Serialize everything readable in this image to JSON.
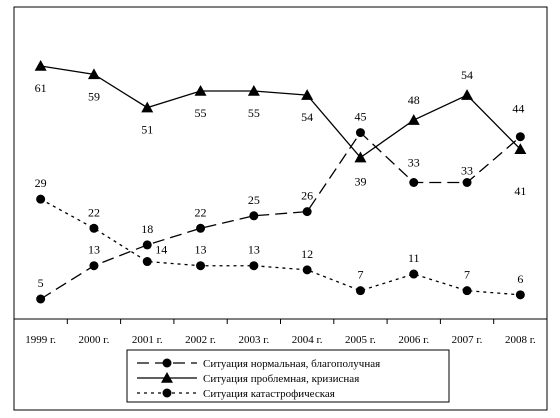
{
  "chart_data": {
    "type": "line",
    "categories": [
      "1999 г.",
      "2000 г.",
      "2001 г.",
      "2002 г.",
      "2003 г.",
      "2004 г.",
      "2005 г.",
      "2006 г.",
      "2007 г.",
      "2008 г."
    ],
    "ylim": [
      0,
      70
    ],
    "grid": false,
    "legend_position": "bottom",
    "series": [
      {
        "name": "Ситуация нормальная, благополучная",
        "marker": "circle",
        "line_style": "dashed",
        "values": [
          5,
          13,
          18,
          22,
          25,
          26,
          45,
          33,
          33,
          44
        ]
      },
      {
        "name": "Ситуация проблемная, кризисная",
        "marker": "triangle",
        "line_style": "solid",
        "values": [
          61,
          59,
          51,
          55,
          55,
          54,
          39,
          48,
          54,
          41
        ]
      },
      {
        "name": "Ситуация катастрофическая",
        "marker": "circle",
        "line_style": "dotted",
        "values": [
          29,
          22,
          14,
          13,
          13,
          12,
          7,
          11,
          7,
          6
        ]
      }
    ]
  }
}
